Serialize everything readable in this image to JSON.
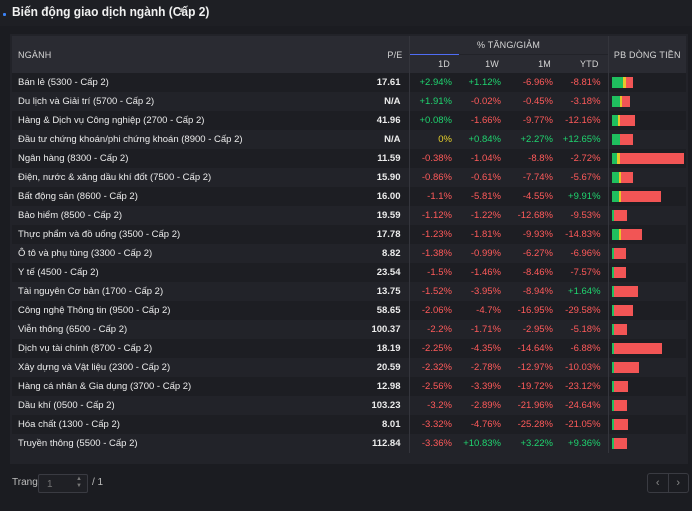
{
  "header": {
    "title": "Biến động giao dịch ngành (Cấp 2)"
  },
  "columns": {
    "name": "NGÀNH",
    "pe": "P/E",
    "change_group": "% TĂNG/GIẢM",
    "d1": "1D",
    "w1": "1W",
    "m1": "1M",
    "ytd": "YTD",
    "pb": "PB DÒNG TIỀN"
  },
  "rows": [
    {
      "name": "Bán lẻ (5300 - Cấp 2)",
      "pe": "17.61",
      "d1": "+2.94%",
      "w1": "+1.12%",
      "m1": "-6.96%",
      "ytd": "-8.81%"
    },
    {
      "name": "Du lịch và Giải trí (5700 - Cấp 2)",
      "pe": "N/A",
      "d1": "+1.91%",
      "w1": "-0.02%",
      "m1": "-0.45%",
      "ytd": "-3.18%"
    },
    {
      "name": "Hàng & Dịch vụ Công nghiệp (2700 - Cấp 2)",
      "pe": "41.96",
      "d1": "+0.08%",
      "w1": "-1.66%",
      "m1": "-9.77%",
      "ytd": "-12.16%"
    },
    {
      "name": "Đầu tư chứng khoán/phi chứng khoán (8900 - Cấp 2)",
      "pe": "N/A",
      "d1": "0%",
      "w1": "+0.84%",
      "m1": "+2.27%",
      "ytd": "+12.65%"
    },
    {
      "name": "Ngân hàng (8300 - Cấp 2)",
      "pe": "11.59",
      "d1": "-0.38%",
      "w1": "-1.04%",
      "m1": "-8.8%",
      "ytd": "-2.72%"
    },
    {
      "name": "Điện, nước & xăng dầu khí đốt (7500 - Cấp 2)",
      "pe": "15.90",
      "d1": "-0.86%",
      "w1": "-0.61%",
      "m1": "-7.74%",
      "ytd": "-5.67%"
    },
    {
      "name": "Bất động sản (8600 - Cấp 2)",
      "pe": "16.00",
      "d1": "-1.1%",
      "w1": "-5.81%",
      "m1": "-4.55%",
      "ytd": "+9.91%"
    },
    {
      "name": "Bảo hiểm (8500 - Cấp 2)",
      "pe": "19.59",
      "d1": "-1.12%",
      "w1": "-1.22%",
      "m1": "-12.68%",
      "ytd": "-9.53%"
    },
    {
      "name": "Thực phẩm và đồ uống (3500 - Cấp 2)",
      "pe": "17.78",
      "d1": "-1.23%",
      "w1": "-1.81%",
      "m1": "-9.93%",
      "ytd": "-14.83%"
    },
    {
      "name": "Ô tô và phụ tùng (3300 - Cấp 2)",
      "pe": "8.82",
      "d1": "-1.38%",
      "w1": "-0.99%",
      "m1": "-6.27%",
      "ytd": "-6.96%"
    },
    {
      "name": "Y tế (4500 - Cấp 2)",
      "pe": "23.54",
      "d1": "-1.5%",
      "w1": "-1.46%",
      "m1": "-8.46%",
      "ytd": "-7.57%"
    },
    {
      "name": "Tài nguyên Cơ bản (1700 - Cấp 2)",
      "pe": "13.75",
      "d1": "-1.52%",
      "w1": "-3.95%",
      "m1": "-8.94%",
      "ytd": "+1.64%"
    },
    {
      "name": "Công nghệ Thông tin (9500 - Cấp 2)",
      "pe": "58.65",
      "d1": "-2.06%",
      "w1": "-4.7%",
      "m1": "-16.95%",
      "ytd": "-29.58%"
    },
    {
      "name": "Viễn thông (6500 - Cấp 2)",
      "pe": "100.37",
      "d1": "-2.2%",
      "w1": "-1.71%",
      "m1": "-2.95%",
      "ytd": "-5.18%"
    },
    {
      "name": "Dịch vụ tài chính (8700 - Cấp 2)",
      "pe": "18.19",
      "d1": "-2.25%",
      "w1": "-4.35%",
      "m1": "-14.64%",
      "ytd": "-6.88%"
    },
    {
      "name": "Xây dựng và Vật liệu (2300 - Cấp 2)",
      "pe": "20.59",
      "d1": "-2.32%",
      "w1": "-2.78%",
      "m1": "-12.97%",
      "ytd": "-10.03%"
    },
    {
      "name": "Hàng cá nhân & Gia dụng (3700 - Cấp 2)",
      "pe": "12.98",
      "d1": "-2.56%",
      "w1": "-3.39%",
      "m1": "-19.72%",
      "ytd": "-23.12%"
    },
    {
      "name": "Dầu khí (0500 - Cấp 2)",
      "pe": "103.23",
      "d1": "-3.2%",
      "w1": "-2.89%",
      "m1": "-21.96%",
      "ytd": "-24.64%"
    },
    {
      "name": "Hóa chất (1300 - Cấp 2)",
      "pe": "8.01",
      "d1": "-3.32%",
      "w1": "-4.76%",
      "m1": "-25.28%",
      "ytd": "-21.05%"
    },
    {
      "name": "Truyền thông (5500 - Cấp 2)",
      "pe": "112.84",
      "d1": "-3.36%",
      "w1": "+10.83%",
      "m1": "+3.22%",
      "ytd": "+9.36%"
    }
  ],
  "pb_flow": [
    {
      "green": 0.55,
      "yellow": 0.1,
      "red": 0.35
    },
    {
      "green": 0.45,
      "yellow": 0.1,
      "red": 0.45
    },
    {
      "green": 0.3,
      "yellow": 0.05,
      "red": 0.65
    },
    {
      "green": 0.4,
      "yellow": 0.0,
      "red": 0.6
    },
    {
      "green": 0.08,
      "yellow": 0.04,
      "red": 0.88
    },
    {
      "green": 0.35,
      "yellow": 0.05,
      "red": 0.6
    },
    {
      "green": 0.15,
      "yellow": 0.02,
      "red": 0.83
    },
    {
      "green": 0.1,
      "yellow": 0.0,
      "red": 0.9
    },
    {
      "green": 0.25,
      "yellow": 0.02,
      "red": 0.73
    },
    {
      "green": 0.15,
      "yellow": 0.0,
      "red": 0.85
    },
    {
      "green": 0.12,
      "yellow": 0.0,
      "red": 0.88
    },
    {
      "green": 0.06,
      "yellow": 0.0,
      "red": 0.94
    },
    {
      "green": 0.1,
      "yellow": 0.0,
      "red": 0.9
    },
    {
      "green": 0.1,
      "yellow": 0.0,
      "red": 0.9
    },
    {
      "green": 0.04,
      "yellow": 0.0,
      "red": 0.96
    },
    {
      "green": 0.06,
      "yellow": 0.0,
      "red": 0.94
    },
    {
      "green": 0.1,
      "yellow": 0.0,
      "red": 0.9
    },
    {
      "green": 0.1,
      "yellow": 0.0,
      "red": 0.9
    },
    {
      "green": 0.1,
      "yellow": 0.0,
      "red": 0.9
    },
    {
      "green": 0.1,
      "yellow": 0.0,
      "red": 0.9
    }
  ],
  "pb_flow_relative_length": [
    0.3,
    0.25,
    0.32,
    0.3,
    1.0,
    0.28,
    0.68,
    0.2,
    0.4,
    0.2,
    0.2,
    0.36,
    0.3,
    0.2,
    0.7,
    0.38,
    0.22,
    0.2,
    0.22,
    0.2
  ],
  "colors": {
    "up": "#1fd46f",
    "down": "#ff5a5a",
    "flat": "#e8d22a",
    "bar_green": "#1fbf5e",
    "bar_yellow": "#e8c52a",
    "bar_red": "#f25555"
  },
  "footer": {
    "page_label": "Trang",
    "page_placeholder": "1",
    "page_total": "/ 1",
    "prev_icon": "‹",
    "next_icon": "›"
  }
}
